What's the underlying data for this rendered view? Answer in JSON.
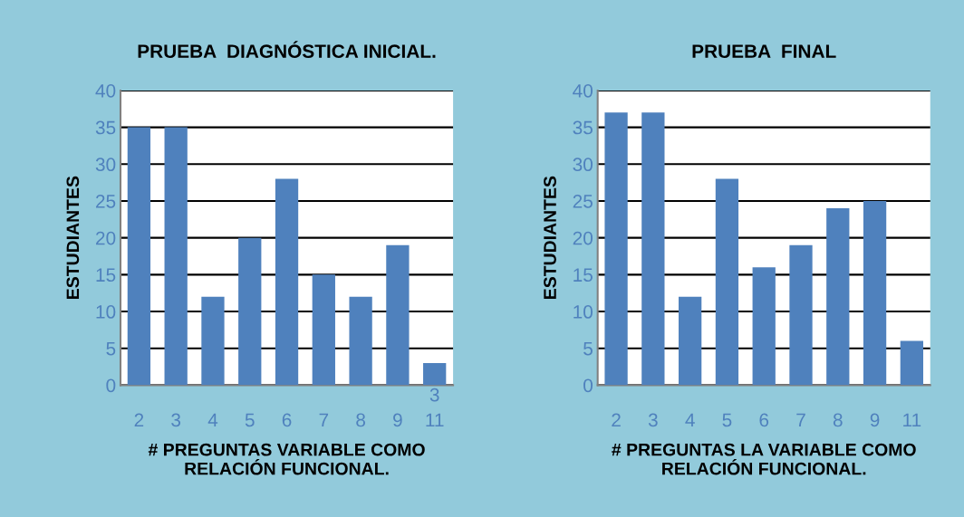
{
  "chart_data": [
    {
      "type": "bar",
      "title": "PRUEBA  DIAGNÓSTICA INICIAL.",
      "xlabel": "# PREGUNTAS VARIABLE COMO\nRELACIÓN FUNCIONAL.",
      "ylabel": "ESTUDIANTES",
      "categories": [
        "2",
        "3",
        "4",
        "5",
        "6",
        "7",
        "8",
        "9",
        "11"
      ],
      "values": [
        35,
        35,
        12,
        20,
        28,
        15,
        12,
        19,
        3
      ],
      "value_labels": [
        null,
        null,
        null,
        null,
        null,
        null,
        null,
        null,
        "3"
      ],
      "color": "#4f81bd",
      "ylim": [
        0,
        40
      ],
      "yticks": [
        0,
        5,
        10,
        15,
        20,
        25,
        30,
        35,
        40
      ],
      "grid": "y"
    },
    {
      "type": "bar",
      "title": "PRUEBA  FINAL",
      "xlabel": "# PREGUNTAS LA VARIABLE COMO\nRELACIÓN FUNCIONAL.",
      "ylabel": "ESTUDIANTES",
      "categories": [
        "2",
        "3",
        "4",
        "5",
        "6",
        "7",
        "8",
        "9",
        "11"
      ],
      "values": [
        37,
        37,
        12,
        28,
        16,
        19,
        24,
        25,
        6
      ],
      "color": "#4f81bd",
      "ylim": [
        0,
        40
      ],
      "yticks": [
        0,
        5,
        10,
        15,
        20,
        25,
        30,
        35,
        40
      ],
      "grid": "y"
    }
  ]
}
